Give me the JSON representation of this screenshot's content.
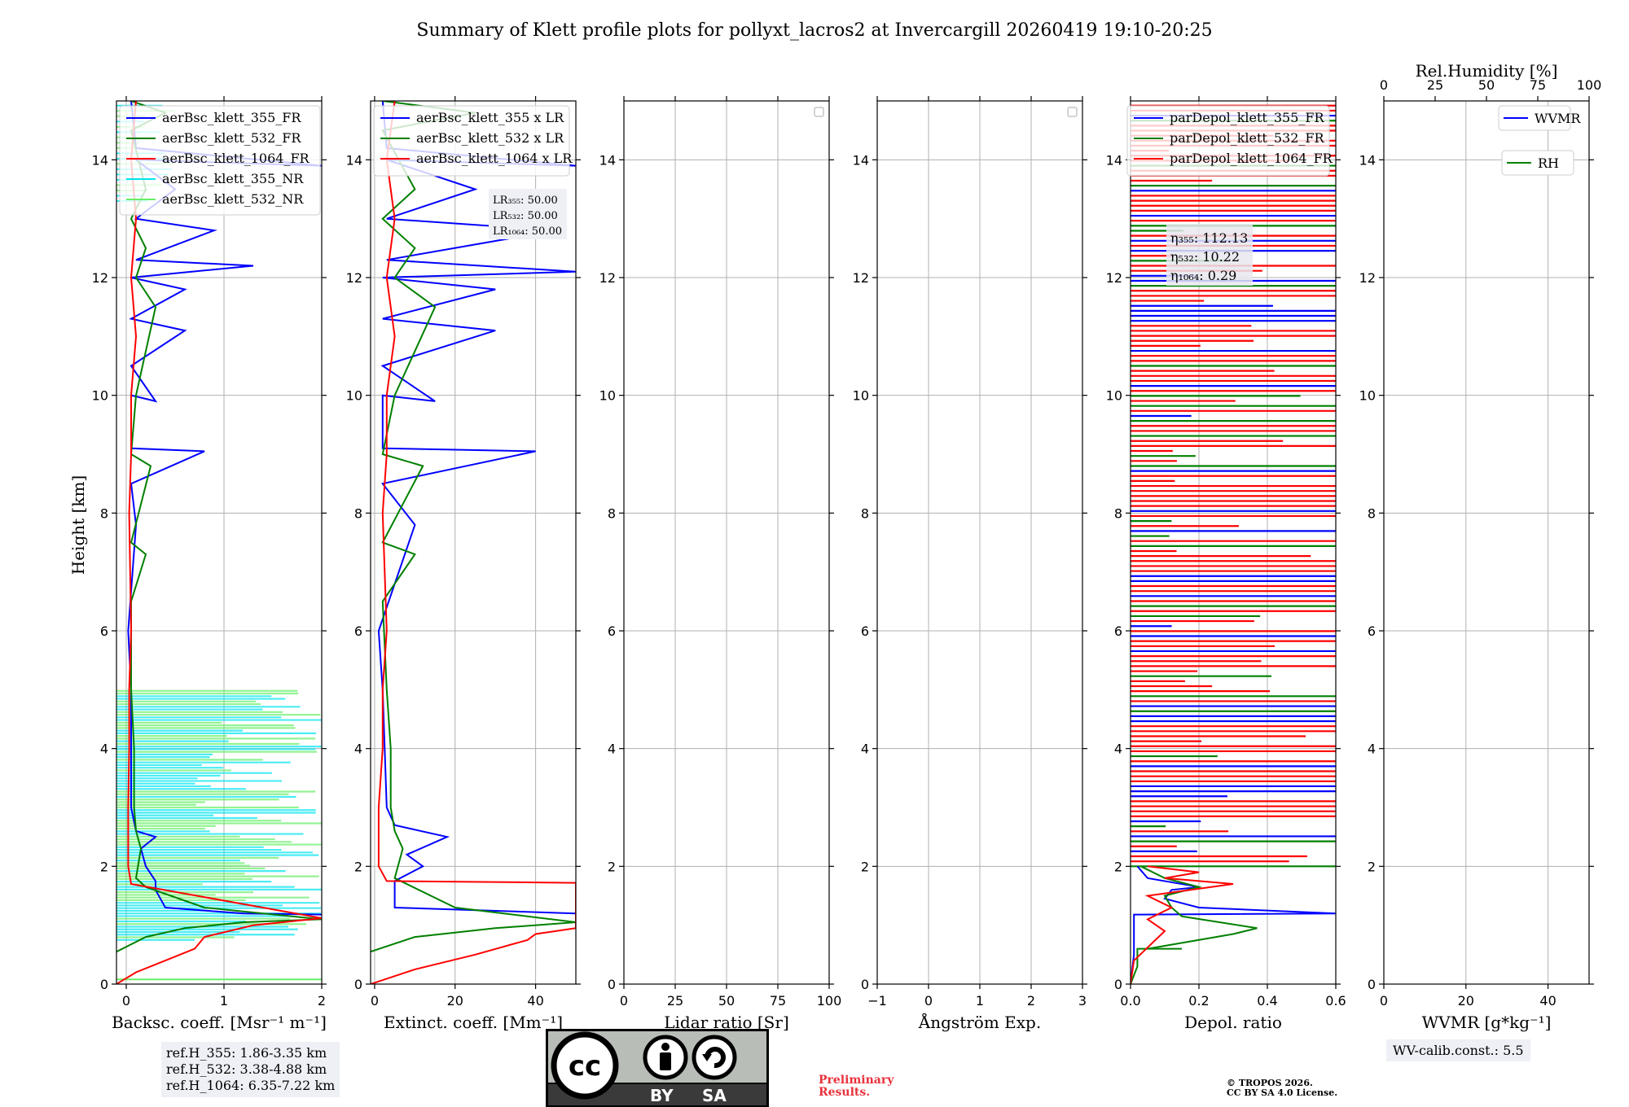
{
  "title": "Summary of Klett profile plots for pollyxt_lacros2 at Invercargill 20260419 19:10-20:25",
  "ylabel": "Height [km]",
  "colors": {
    "c355": "#0000ff",
    "c532": "#008000",
    "c1064": "#ff0000",
    "c355nr": "#00e5ee",
    "c532nr": "#66ee66"
  },
  "chart_data": [
    {
      "type": "line",
      "id": "backscatter",
      "xlabel": "Backsc. coeff. [Msr⁻¹ m⁻¹]",
      "xlim": [
        -0.1,
        2
      ],
      "xticks": [
        "0",
        "1",
        "2"
      ],
      "xtick_values": [
        0,
        1,
        2
      ],
      "ylim": [
        0,
        15
      ],
      "yticks": [
        "0",
        "2",
        "4",
        "6",
        "8",
        "10",
        "12",
        "14"
      ],
      "legend": [
        "aerBsc_klett_355_FR",
        "aerBsc_klett_532_FR",
        "aerBsc_klett_1064_FR",
        "aerBsc_klett_355_NR",
        "aerBsc_klett_532_NR"
      ],
      "series": [
        {
          "name": "aerBsc_klett_355_FR",
          "color": "#0000ff",
          "points": [
            [
              2.0,
              1.18
            ],
            [
              1.2,
              1.2
            ],
            [
              0.4,
              1.3
            ],
            [
              0.3,
              1.6
            ],
            [
              0.3,
              1.75
            ],
            [
              0.2,
              2.0
            ],
            [
              0.15,
              2.3
            ],
            [
              0.3,
              2.5
            ],
            [
              0.1,
              2.6
            ],
            [
              0.05,
              3.0
            ],
            [
              0.05,
              5.0
            ],
            [
              0.02,
              6.0
            ],
            [
              0.1,
              7.8
            ],
            [
              0.05,
              8.5
            ],
            [
              0.8,
              9.05
            ],
            [
              0.05,
              9.1
            ],
            [
              0.05,
              10.0
            ],
            [
              0.3,
              9.9
            ],
            [
              0.05,
              10.5
            ],
            [
              0.6,
              11.1
            ],
            [
              0.05,
              11.3
            ],
            [
              0.6,
              11.8
            ],
            [
              0.05,
              12.0
            ],
            [
              1.3,
              12.2
            ],
            [
              0.1,
              12.3
            ],
            [
              0.9,
              12.8
            ],
            [
              0.1,
              13.0
            ],
            [
              0.5,
              13.5
            ],
            [
              0.1,
              14.0
            ],
            [
              2.0,
              13.9
            ],
            [
              0.1,
              14.2
            ],
            [
              0.05,
              15.0
            ]
          ]
        },
        {
          "name": "aerBsc_klett_532_FR",
          "color": "#008000",
          "points": [
            [
              -0.1,
              0.55
            ],
            [
              0.2,
              0.8
            ],
            [
              0.6,
              0.95
            ],
            [
              1.2,
              1.05
            ],
            [
              2.0,
              1.1
            ],
            [
              0.8,
              1.3
            ],
            [
              0.2,
              1.65
            ],
            [
              0.1,
              1.8
            ],
            [
              0.15,
              2.3
            ],
            [
              0.1,
              2.6
            ],
            [
              0.08,
              3.0
            ],
            [
              0.08,
              4.0
            ],
            [
              0.05,
              5.0
            ],
            [
              0.05,
              6.5
            ],
            [
              0.2,
              7.3
            ],
            [
              0.05,
              7.5
            ],
            [
              0.25,
              8.8
            ],
            [
              0.05,
              9.0
            ],
            [
              0.1,
              10.0
            ],
            [
              0.3,
              11.5
            ],
            [
              0.1,
              12.0
            ],
            [
              0.2,
              12.5
            ],
            [
              0.05,
              13.0
            ],
            [
              0.2,
              13.5
            ],
            [
              0.05,
              14.5
            ],
            [
              0.4,
              14.8
            ],
            [
              0.05,
              15.0
            ]
          ]
        },
        {
          "name": "aerBsc_klett_1064_FR",
          "color": "#ff0000",
          "points": [
            [
              -0.1,
              0.0
            ],
            [
              0.1,
              0.2
            ],
            [
              0.4,
              0.4
            ],
            [
              0.7,
              0.6
            ],
            [
              0.8,
              0.8
            ],
            [
              1.3,
              1.0
            ],
            [
              2.0,
              1.12
            ],
            [
              0.05,
              1.7
            ],
            [
              0.02,
              2.0
            ],
            [
              0.02,
              3.0
            ],
            [
              0.03,
              4.0
            ],
            [
              0.03,
              5.0
            ],
            [
              0.05,
              6.0
            ],
            [
              0.03,
              8.0
            ],
            [
              0.05,
              9.0
            ],
            [
              0.05,
              10.0
            ],
            [
              0.1,
              11.0
            ],
            [
              0.05,
              12.0
            ],
            [
              0.1,
              13.0
            ],
            [
              0.05,
              14.0
            ],
            [
              0.1,
              15.0
            ]
          ]
        }
      ]
    },
    {
      "type": "line",
      "id": "extinction",
      "xlabel": "Extinct. coeff. [Mm⁻¹]",
      "xlim": [
        -1,
        50
      ],
      "xticks": [
        "0",
        "20",
        "40"
      ],
      "xtick_values": [
        0,
        20,
        40
      ],
      "ylim": [
        0,
        15
      ],
      "yticks": [
        "0",
        "2",
        "4",
        "6",
        "8",
        "10",
        "12",
        "14"
      ],
      "legend": [
        "aerBsc_klett_355 x LR",
        "aerBsc_klett_532 x LR",
        "aerBsc_klett_1064 x LR"
      ],
      "lr_labels": [
        "LR₃₅₅: 50.00",
        "LR₅₃₂: 50.00",
        "LR₁₀₆₄: 50.00"
      ],
      "series": [
        {
          "name": "aerBsc_klett_355 x LR",
          "color": "#0000ff",
          "points": [
            [
              50,
              1.2
            ],
            [
              5,
              1.3
            ],
            [
              5,
              1.75
            ],
            [
              12,
              2.0
            ],
            [
              8,
              2.2
            ],
            [
              18,
              2.5
            ],
            [
              5,
              2.7
            ],
            [
              3,
              3.0
            ],
            [
              2,
              5.0
            ],
            [
              1,
              6.0
            ],
            [
              10,
              7.8
            ],
            [
              2,
              8.5
            ],
            [
              40,
              9.05
            ],
            [
              2,
              9.1
            ],
            [
              2,
              10.0
            ],
            [
              15,
              9.9
            ],
            [
              2,
              10.5
            ],
            [
              30,
              11.1
            ],
            [
              2,
              11.3
            ],
            [
              30,
              11.8
            ],
            [
              2,
              12.0
            ],
            [
              50,
              12.1
            ],
            [
              3,
              12.3
            ],
            [
              45,
              12.8
            ],
            [
              3,
              13.0
            ],
            [
              25,
              13.5
            ],
            [
              3,
              14.0
            ],
            [
              50,
              13.9
            ],
            [
              3,
              14.2
            ],
            [
              2,
              15.0
            ]
          ]
        },
        {
          "name": "aerBsc_klett_532 x LR",
          "color": "#008000",
          "points": [
            [
              -1,
              0.55
            ],
            [
              10,
              0.8
            ],
            [
              30,
              0.95
            ],
            [
              50,
              1.05
            ],
            [
              20,
              1.3
            ],
            [
              5,
              1.8
            ],
            [
              7,
              2.3
            ],
            [
              5,
              2.6
            ],
            [
              4,
              3.0
            ],
            [
              4,
              4.0
            ],
            [
              3,
              5.0
            ],
            [
              2,
              6.5
            ],
            [
              10,
              7.3
            ],
            [
              2,
              7.5
            ],
            [
              12,
              8.8
            ],
            [
              2,
              9.0
            ],
            [
              5,
              10.0
            ],
            [
              15,
              11.5
            ],
            [
              5,
              12.0
            ],
            [
              10,
              12.5
            ],
            [
              2,
              13.0
            ],
            [
              10,
              13.5
            ],
            [
              2,
              14.5
            ],
            [
              25,
              14.8
            ],
            [
              2,
              15.0
            ]
          ]
        },
        {
          "name": "aerBsc_klett_1064 x LR",
          "color": "#ff0000",
          "points": [
            [
              -1,
              0.0
            ],
            [
              10,
              0.25
            ],
            [
              25,
              0.5
            ],
            [
              38,
              0.75
            ],
            [
              40,
              0.85
            ],
            [
              50,
              0.95
            ],
            [
              50,
              1.72
            ],
            [
              3,
              1.75
            ],
            [
              1,
              2.0
            ],
            [
              1,
              3.0
            ],
            [
              2,
              4.0
            ],
            [
              2,
              5.0
            ],
            [
              3,
              6.0
            ],
            [
              2,
              8.0
            ],
            [
              3,
              9.0
            ],
            [
              3,
              10.0
            ],
            [
              5,
              11.0
            ],
            [
              3,
              12.0
            ],
            [
              5,
              13.0
            ],
            [
              3,
              14.0
            ],
            [
              5,
              15.0
            ]
          ]
        }
      ]
    },
    {
      "type": "line",
      "id": "lidarratio",
      "xlabel": "Lidar ratio [Sr]",
      "xlim": [
        0,
        100
      ],
      "xticks": [
        "0",
        "25",
        "50",
        "75",
        "100"
      ],
      "xtick_values": [
        0,
        25,
        50,
        75,
        100
      ],
      "ylim": [
        0,
        15
      ],
      "yticks": [
        "0",
        "2",
        "4",
        "6",
        "8",
        "10",
        "12",
        "14"
      ],
      "series": []
    },
    {
      "type": "line",
      "id": "angstrom",
      "xlabel": "Ångström Exp.",
      "xlim": [
        -1,
        3
      ],
      "xticks": [
        "−1",
        "0",
        "1",
        "2",
        "3"
      ],
      "xtick_values": [
        -1,
        0,
        1,
        2,
        3
      ],
      "ylim": [
        0,
        15
      ],
      "yticks": [
        "0",
        "2",
        "4",
        "6",
        "8",
        "10",
        "12",
        "14"
      ],
      "series": []
    },
    {
      "type": "line",
      "id": "depol",
      "xlabel": "Depol. ratio",
      "xlim": [
        0,
        0.6
      ],
      "xticks": [
        "0.0",
        "0.2",
        "0.4",
        "0.6"
      ],
      "xtick_values": [
        0,
        0.2,
        0.4,
        0.6
      ],
      "ylim": [
        0,
        15
      ],
      "yticks": [
        "0",
        "2",
        "4",
        "6",
        "8",
        "10",
        "12",
        "14"
      ],
      "legend": [
        "parDepol_klett_355_FR",
        "parDepol_klett_532_FR",
        "parDepol_klett_1064_FR"
      ],
      "eta_labels": [
        "η₃₅₅: 112.13",
        "η₅₃₂: 10.22",
        "η₁₀₆₄: 0.29"
      ],
      "series": [
        {
          "name": "parDepol_klett_355_FR",
          "color": "#0000ff",
          "points": [
            [
              0.0,
              0.0
            ],
            [
              0.01,
              0.5
            ],
            [
              0.01,
              1.18
            ],
            [
              0.6,
              1.2
            ],
            [
              0.2,
              1.3
            ],
            [
              0.1,
              1.45
            ],
            [
              0.12,
              1.6
            ],
            [
              0.2,
              1.65
            ],
            [
              0.05,
              1.8
            ],
            [
              0.02,
              2.0
            ]
          ]
        },
        {
          "name": "parDepol_klett_532_FR",
          "color": "#008000",
          "points": [
            [
              0.0,
              0.0
            ],
            [
              0.02,
              0.3
            ],
            [
              0.02,
              0.6
            ],
            [
              0.15,
              0.6
            ],
            [
              0.05,
              0.6
            ],
            [
              0.3,
              0.85
            ],
            [
              0.37,
              0.95
            ],
            [
              0.15,
              1.15
            ],
            [
              0.12,
              1.3
            ],
            [
              0.1,
              1.5
            ],
            [
              0.2,
              1.65
            ],
            [
              0.1,
              1.8
            ],
            [
              0.03,
              2.0
            ]
          ]
        },
        {
          "name": "parDepol_klett_1064_FR",
          "color": "#ff0000",
          "points": [
            [
              0.0,
              0.0
            ],
            [
              0.01,
              0.4
            ],
            [
              0.1,
              0.9
            ],
            [
              0.05,
              1.1
            ],
            [
              0.12,
              1.3
            ],
            [
              0.05,
              1.5
            ],
            [
              0.3,
              1.7
            ],
            [
              0.1,
              1.8
            ],
            [
              0.2,
              1.9
            ],
            [
              0.05,
              2.0
            ]
          ]
        }
      ]
    },
    {
      "type": "line",
      "id": "wvmr",
      "xlabel": "WVMR [g*kg⁻¹]",
      "top_xlabel": "Rel.Humidity [%]",
      "xlim": [
        0,
        50
      ],
      "xticks": [
        "0",
        "20",
        "40"
      ],
      "xtick_values": [
        0,
        20,
        40
      ],
      "top_xlim": [
        0,
        100
      ],
      "top_xticks": [
        "0",
        "25",
        "50",
        "75",
        "100"
      ],
      "top_xtick_values": [
        0,
        25,
        50,
        75,
        100
      ],
      "ylim": [
        0,
        15
      ],
      "yticks": [
        "0",
        "2",
        "4",
        "6",
        "8",
        "10",
        "12",
        "14"
      ],
      "legend": [
        "WVMR",
        "RH"
      ],
      "series": []
    }
  ],
  "ref_heights": [
    "ref.H_355: 1.86-3.35 km",
    "ref.H_532: 3.38-4.88 km",
    "ref.H_1064: 6.35-7.22 km"
  ],
  "wv_calib": "WV-calib.const.: 5.5",
  "preliminary": [
    "Preliminary",
    "Results."
  ],
  "copyright": [
    "© TROPOS 2026.",
    "CC BY SA 4.0 License."
  ],
  "cc_badge": {
    "cc": "cc",
    "by": "BY",
    "sa": "SA"
  }
}
